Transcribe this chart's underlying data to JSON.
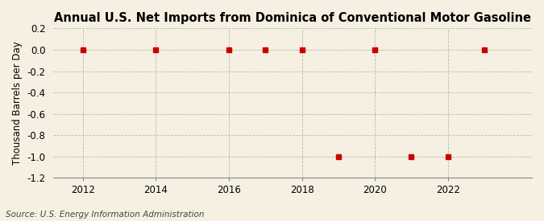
{
  "title": "Annual U.S. Net Imports from Dominica of Conventional Motor Gasoline",
  "ylabel": "Thousand Barrels per Day",
  "source": "Source: U.S. Energy Information Administration",
  "background_color": "#f5f0e1",
  "plot_background_color": "#f5f0e1",
  "years": [
    2012,
    2014,
    2016,
    2017,
    2018,
    2019,
    2020,
    2021,
    2022,
    2023
  ],
  "values": [
    0,
    0,
    0,
    0,
    0,
    -1,
    0,
    -1,
    -1,
    0
  ],
  "marker_color": "#cc0000",
  "marker_size": 4,
  "ylim": [
    -1.2,
    0.2
  ],
  "yticks": [
    0.2,
    0.0,
    -0.2,
    -0.4,
    -0.6,
    -0.8,
    -1.0,
    -1.2
  ],
  "xlim": [
    2011.2,
    2024.3
  ],
  "xticks": [
    2012,
    2014,
    2016,
    2018,
    2020,
    2022
  ],
  "grid_color": "#aaaaaa",
  "title_fontsize": 10.5,
  "axis_fontsize": 8.5,
  "tick_fontsize": 8.5,
  "source_fontsize": 7.5
}
